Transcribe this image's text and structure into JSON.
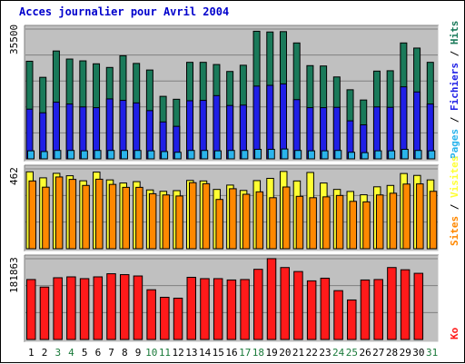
{
  "title": "Acces journalier pour Avril 2004",
  "colors": {
    "title": "#0000cc",
    "plot_bg": "#c0c0c0",
    "hits": "#1a7a5a",
    "files": "#1f1fe6",
    "pages": "#2ab4ec",
    "visits": "#ffff33",
    "sites": "#ff8800",
    "kb": "#ff1a1a",
    "day_normal": "#000000",
    "day_weekend": "#1a7a3a"
  },
  "labels": {
    "pages": "Pages",
    "files": "Fichiers",
    "hits": "Hits",
    "sites": "Sites",
    "visits": "Visites",
    "kb": "Ko",
    "sep": " / "
  },
  "chart_data": [
    {
      "type": "bar",
      "name": "hits-files-pages",
      "y_max_label": "35500",
      "ylim": [
        0,
        35500
      ],
      "categories": [
        "1",
        "2",
        "3",
        "4",
        "5",
        "6",
        "7",
        "8",
        "9",
        "10",
        "11",
        "12",
        "13",
        "14",
        "15",
        "16",
        "17",
        "18",
        "19",
        "20",
        "21",
        "22",
        "23",
        "24",
        "25",
        "26",
        "27",
        "28",
        "29",
        "30",
        "31"
      ],
      "weekend_days": [
        "3",
        "4",
        "10",
        "11",
        "17",
        "18",
        "24",
        "25",
        "31"
      ],
      "series": [
        {
          "name": "Hits",
          "values": [
            26700,
            22300,
            29500,
            27300,
            26800,
            26000,
            25000,
            28200,
            26100,
            24300,
            17100,
            16300,
            26400,
            26400,
            25800,
            23900,
            25600,
            34900,
            34700,
            34800,
            31700,
            25500,
            25400,
            22400,
            18900,
            16100,
            24000,
            24100,
            31700,
            30300,
            26400
          ]
        },
        {
          "name": "Fichiers",
          "values": [
            13600,
            12600,
            15500,
            15000,
            14200,
            14000,
            16400,
            16000,
            15300,
            13200,
            10100,
            8900,
            15900,
            16000,
            17300,
            14600,
            14700,
            19900,
            20100,
            20500,
            16200,
            14000,
            14000,
            14100,
            10400,
            9300,
            14200,
            14100,
            19700,
            18300,
            15000
          ]
        },
        {
          "name": "Pages",
          "values": [
            2200,
            2000,
            2300,
            2300,
            2200,
            2300,
            2300,
            2300,
            2300,
            2200,
            2000,
            1800,
            2300,
            2300,
            2200,
            2300,
            2300,
            2600,
            2600,
            2700,
            2300,
            2200,
            2200,
            2300,
            1800,
            1700,
            2200,
            2200,
            2600,
            2300,
            2200
          ]
        }
      ]
    },
    {
      "type": "bar",
      "name": "visits-sites",
      "y_max_label": "462",
      "ylim": [
        0,
        462
      ],
      "categories": [
        "1",
        "2",
        "3",
        "4",
        "5",
        "6",
        "7",
        "8",
        "9",
        "10",
        "11",
        "12",
        "13",
        "14",
        "15",
        "16",
        "17",
        "18",
        "19",
        "20",
        "21",
        "22",
        "23",
        "24",
        "25",
        "26",
        "27",
        "28",
        "29",
        "30",
        "31"
      ],
      "series": [
        {
          "name": "Visites",
          "values": [
            445,
            410,
            436,
            422,
            393,
            443,
            398,
            380,
            388,
            340,
            332,
            336,
            395,
            392,
            343,
            368,
            337,
            394,
            407,
            447,
            392,
            441,
            380,
            343,
            331,
            312,
            358,
            366,
            435,
            424,
            398
          ]
        },
        {
          "name": "Sites",
          "values": [
            392,
            356,
            415,
            401,
            366,
            402,
            372,
            355,
            355,
            318,
            311,
            305,
            382,
            376,
            285,
            347,
            315,
            329,
            295,
            357,
            303,
            295,
            300,
            308,
            274,
            271,
            311,
            321,
            374,
            375,
            332
          ]
        }
      ]
    },
    {
      "type": "bar",
      "name": "kb",
      "y_max_label": "181863",
      "ylim": [
        0,
        181863
      ],
      "categories": [
        "1",
        "2",
        "3",
        "4",
        "5",
        "6",
        "7",
        "8",
        "9",
        "10",
        "11",
        "12",
        "13",
        "14",
        "15",
        "16",
        "17",
        "18",
        "19",
        "20",
        "21",
        "22",
        "23",
        "24",
        "25",
        "26",
        "27",
        "28",
        "29",
        "30",
        "31"
      ],
      "series": [
        {
          "name": "Ko",
          "values": [
            135000,
            118000,
            139000,
            141000,
            137000,
            141000,
            148000,
            146000,
            143000,
            112000,
            95000,
            93000,
            140000,
            137000,
            137000,
            134000,
            135000,
            158000,
            182000,
            162000,
            153000,
            132000,
            138000,
            110000,
            89000,
            134000,
            135000,
            162000,
            157000,
            149000,
            0
          ]
        }
      ]
    }
  ]
}
